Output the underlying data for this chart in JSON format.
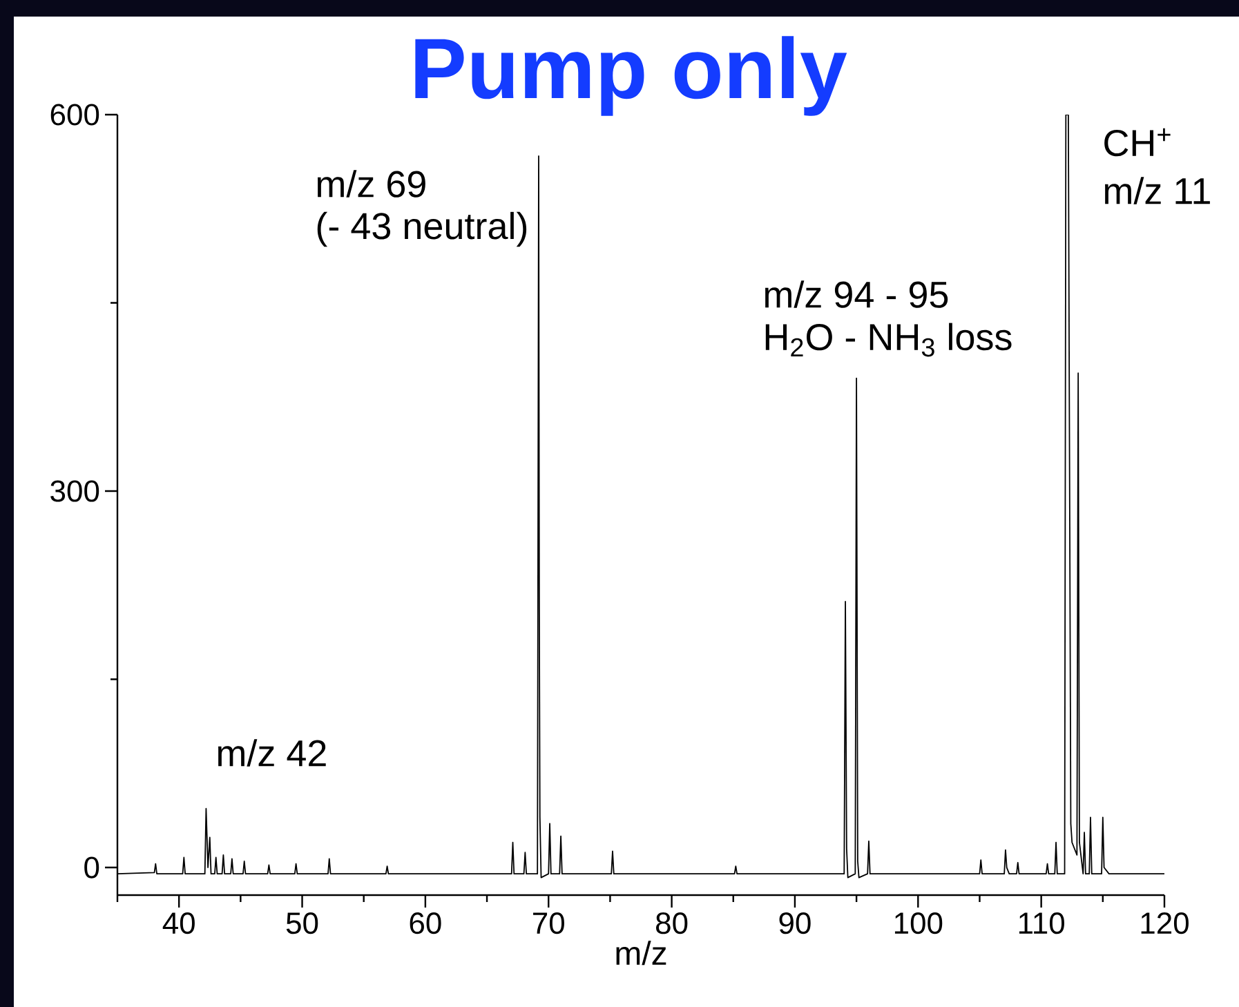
{
  "chart_data": {
    "type": "line",
    "title": "Pump only",
    "xlabel": "m/z",
    "color": "#000000",
    "marker": "none",
    "line_style": "solid",
    "x": [
      35,
      38.0,
      38.1,
      38.2,
      40.3,
      40.4,
      40.5,
      42.1,
      42.2,
      42.35,
      42.5,
      42.6,
      42.9,
      43.0,
      43.1,
      43.5,
      43.6,
      43.7,
      44.2,
      44.3,
      44.4,
      45.2,
      45.3,
      45.4,
      47.2,
      47.3,
      47.4,
      49.4,
      49.5,
      49.6,
      52.1,
      52.2,
      52.3,
      56.8,
      56.9,
      57.0,
      67.0,
      67.1,
      67.2,
      68.0,
      68.1,
      68.2,
      69.1,
      69.2,
      69.25,
      69.3,
      69.4,
      70.0,
      70.1,
      70.2,
      70.9,
      71.0,
      71.1,
      75.1,
      75.2,
      75.3,
      85.1,
      85.2,
      85.3,
      94.0,
      94.1,
      94.2,
      94.3,
      94.9,
      95.0,
      95.1,
      95.2,
      95.9,
      96.0,
      96.1,
      105.0,
      105.1,
      105.2,
      107.0,
      107.1,
      107.2,
      107.4,
      108.0,
      108.1,
      108.2,
      110.4,
      110.5,
      110.6,
      111.1,
      111.2,
      111.3,
      111.9,
      112.0,
      112.2,
      112.4,
      112.5,
      112.9,
      113.0,
      113.1,
      113.4,
      113.5,
      113.6,
      113.9,
      114.0,
      114.1,
      114.9,
      115.0,
      115.1,
      115.5,
      120
    ],
    "values": [
      -5,
      -4,
      3,
      -5,
      -5,
      8,
      -5,
      -5,
      47,
      0,
      24,
      -5,
      -5,
      8,
      -5,
      -5,
      10,
      -5,
      -5,
      7,
      -5,
      -5,
      5,
      -5,
      -5,
      2,
      -5,
      -5,
      3,
      -5,
      -5,
      7,
      -5,
      -5,
      1,
      -5,
      -5,
      20,
      -5,
      -5,
      12,
      -5,
      -5,
      567,
      206,
      40,
      -8,
      -5,
      35,
      -5,
      -5,
      25,
      -5,
      -5,
      13,
      -5,
      -5,
      1,
      -5,
      -5,
      212,
      15,
      -8,
      -5,
      390,
      5,
      -8,
      -5,
      21,
      -5,
      -5,
      6,
      -5,
      -5,
      14,
      0,
      -5,
      -5,
      4,
      -5,
      -5,
      3,
      -5,
      -5,
      20,
      -5,
      -5,
      600,
      600,
      35,
      20,
      10,
      394,
      20,
      -5,
      28,
      -5,
      -5,
      40,
      -5,
      -5,
      40,
      0,
      -5,
      -5
    ],
    "xlim": [
      35,
      120
    ],
    "ylim": [
      -22,
      600
    ],
    "xticks": [
      {
        "value": 35,
        "label": null
      },
      40,
      {
        "value": 45,
        "label": null
      },
      50,
      {
        "value": 55,
        "label": null
      },
      60,
      {
        "value": 65,
        "label": null
      },
      70,
      {
        "value": 75,
        "label": null
      },
      80,
      {
        "value": 85,
        "label": null
      },
      90,
      {
        "value": 95,
        "label": null
      },
      100,
      {
        "value": 105,
        "label": null
      },
      110,
      {
        "value": 115,
        "label": null
      },
      120
    ],
    "yticks": [
      0,
      {
        "value": 150,
        "label": null
      },
      300,
      {
        "value": 450,
        "label": null
      },
      600
    ],
    "annotations": [
      "m/z 69",
      "(- 43 neutral)",
      "m/z 94 - 95",
      "H$_{2}$O - NH$_{3}$ loss",
      "CH$^{+}$",
      "m/z 11",
      "m/z 42"
    ]
  }
}
